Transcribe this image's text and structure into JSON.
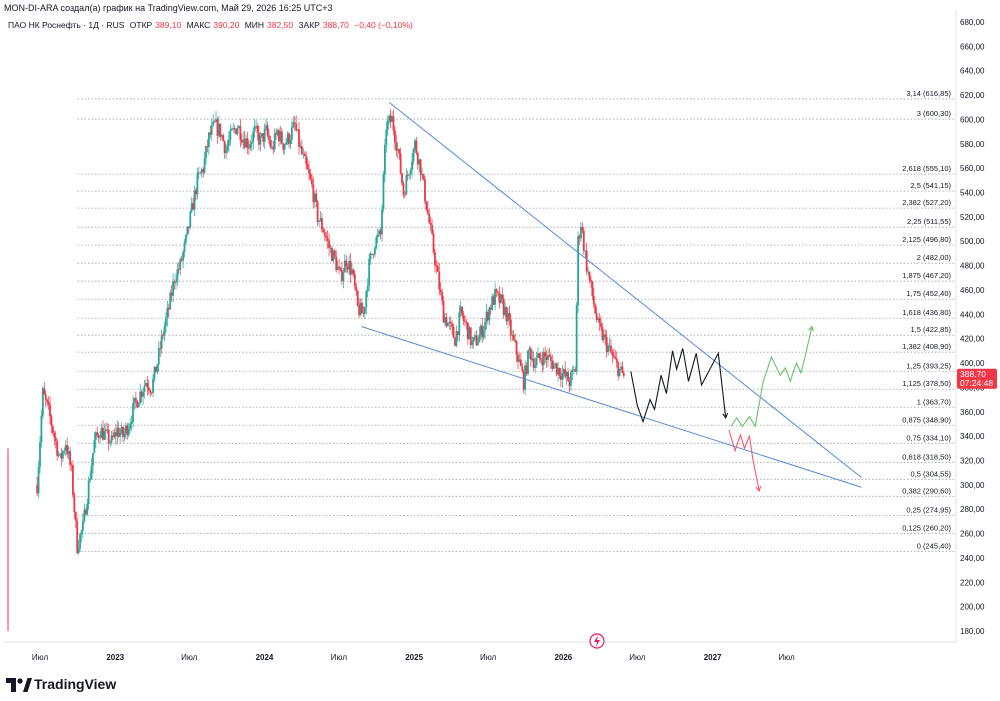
{
  "header": {
    "author_line": "MON-DI-ARA создал(а) график на TradingView.com, Май 29, 2026 16:25 UTC+3"
  },
  "legend": {
    "symbol": "ПАО НК Роснефть · 1Д · RUS",
    "open_label": "ОТКР",
    "open_value": "389,10",
    "high_label": "МАКС",
    "high_value": "390,20",
    "low_label": "МИН",
    "low_value": "382,50",
    "close_label": "ЗАКР",
    "close_value": "388,70",
    "change": "−0,40 (−0,10%)"
  },
  "logo": {
    "text": "TradingView"
  },
  "colors": {
    "up": "#26a69a",
    "down": "#f23645",
    "trendline": "#5b8bd8",
    "fib": "#9aa0a6",
    "bull_path": "#67c16b",
    "bear_path": "#f05a73",
    "base_path": "#131722",
    "price_tag": "#f23645"
  },
  "chart_data": {
    "type": "candlestick",
    "price_axis": {
      "min": 180,
      "max": 680,
      "ticks": [
        "180,00",
        "200,00",
        "220,00",
        "240,00",
        "260,00",
        "280,00",
        "300,00",
        "320,00",
        "340,00",
        "360,00",
        "380,00",
        "400,00",
        "420,00",
        "440,00",
        "460,00",
        "480,00",
        "500,00",
        "520,00",
        "540,00",
        "560,00",
        "580,00",
        "600,00",
        "620,00",
        "640,00",
        "660,00",
        "680,00"
      ]
    },
    "time_axis": {
      "start": "2022-07-01",
      "end": "2027-08-15",
      "labels": [
        {
          "date": "2022-07-01",
          "text": "Июл"
        },
        {
          "date": "2023-01-01",
          "text": "2023"
        },
        {
          "date": "2023-07-01",
          "text": "Июл"
        },
        {
          "date": "2024-01-01",
          "text": "2024"
        },
        {
          "date": "2024-07-01",
          "text": "Июл"
        },
        {
          "date": "2025-01-01",
          "text": "2025"
        },
        {
          "date": "2025-07-01",
          "text": "Июл"
        },
        {
          "date": "2026-01-01",
          "text": "2026"
        },
        {
          "date": "2026-07-01",
          "text": "Июл"
        },
        {
          "date": "2027-01-01",
          "text": "2027"
        },
        {
          "date": "2027-07-01",
          "text": "Июл"
        }
      ]
    },
    "last_price": {
      "value": 388.7,
      "label": "388,70",
      "countdown": "07:24:48"
    },
    "price_path": [
      [
        "2022-06-24",
        300
      ],
      [
        "2022-07-08",
        375
      ],
      [
        "2022-07-22",
        360
      ],
      [
        "2022-08-05",
        340
      ],
      [
        "2022-08-19",
        320
      ],
      [
        "2022-09-02",
        335
      ],
      [
        "2022-09-16",
        310
      ],
      [
        "2022-09-30",
        250
      ],
      [
        "2022-10-14",
        265
      ],
      [
        "2022-10-28",
        300
      ],
      [
        "2022-11-11",
        335
      ],
      [
        "2022-11-25",
        345
      ],
      [
        "2022-12-09",
        340
      ],
      [
        "2022-12-23",
        335
      ],
      [
        "2023-01-06",
        345
      ],
      [
        "2023-01-20",
        340
      ],
      [
        "2023-02-03",
        350
      ],
      [
        "2023-02-17",
        365
      ],
      [
        "2023-03-03",
        375
      ],
      [
        "2023-03-17",
        385
      ],
      [
        "2023-03-31",
        380
      ],
      [
        "2023-04-14",
        400
      ],
      [
        "2023-04-28",
        425
      ],
      [
        "2023-05-12",
        445
      ],
      [
        "2023-05-26",
        470
      ],
      [
        "2023-06-09",
        480
      ],
      [
        "2023-06-23",
        500
      ],
      [
        "2023-07-07",
        525
      ],
      [
        "2023-07-21",
        550
      ],
      [
        "2023-08-04",
        560
      ],
      [
        "2023-08-18",
        585
      ],
      [
        "2023-09-01",
        595
      ],
      [
        "2023-09-15",
        590
      ],
      [
        "2023-09-29",
        575
      ],
      [
        "2023-10-13",
        588
      ],
      [
        "2023-10-27",
        595
      ],
      [
        "2023-11-10",
        585
      ],
      [
        "2023-11-24",
        580
      ],
      [
        "2023-12-08",
        590
      ],
      [
        "2023-12-22",
        582
      ],
      [
        "2024-01-05",
        590
      ],
      [
        "2024-01-19",
        575
      ],
      [
        "2024-02-02",
        590
      ],
      [
        "2024-02-16",
        580
      ],
      [
        "2024-03-01",
        585
      ],
      [
        "2024-03-15",
        595
      ],
      [
        "2024-03-29",
        575
      ],
      [
        "2024-04-12",
        560
      ],
      [
        "2024-04-26",
        545
      ],
      [
        "2024-05-10",
        520
      ],
      [
        "2024-05-24",
        510
      ],
      [
        "2024-06-07",
        495
      ],
      [
        "2024-06-21",
        485
      ],
      [
        "2024-07-05",
        470
      ],
      [
        "2024-07-19",
        485
      ],
      [
        "2024-08-02",
        475
      ],
      [
        "2024-08-16",
        445
      ],
      [
        "2024-08-30",
        440
      ],
      [
        "2024-09-13",
        480
      ],
      [
        "2024-09-27",
        500
      ],
      [
        "2024-10-11",
        505
      ],
      [
        "2024-10-25",
        595
      ],
      [
        "2024-11-08",
        600
      ],
      [
        "2024-11-22",
        575
      ],
      [
        "2024-12-06",
        540
      ],
      [
        "2024-12-20",
        560
      ],
      [
        "2025-01-03",
        580
      ],
      [
        "2025-01-17",
        560
      ],
      [
        "2025-01-31",
        530
      ],
      [
        "2025-02-14",
        500
      ],
      [
        "2025-02-28",
        470
      ],
      [
        "2025-03-14",
        440
      ],
      [
        "2025-03-28",
        430
      ],
      [
        "2025-04-11",
        420
      ],
      [
        "2025-04-25",
        440
      ],
      [
        "2025-05-09",
        430
      ],
      [
        "2025-05-23",
        415
      ],
      [
        "2025-06-06",
        420
      ],
      [
        "2025-06-20",
        430
      ],
      [
        "2025-07-04",
        445
      ],
      [
        "2025-07-18",
        455
      ],
      [
        "2025-08-01",
        450
      ],
      [
        "2025-08-15",
        440
      ],
      [
        "2025-08-29",
        420
      ],
      [
        "2025-09-12",
        405
      ],
      [
        "2025-09-26",
        385
      ],
      [
        "2025-10-10",
        410
      ],
      [
        "2025-10-24",
        400
      ],
      [
        "2025-11-07",
        405
      ],
      [
        "2025-11-21",
        405
      ],
      [
        "2025-12-05",
        400
      ],
      [
        "2025-12-19",
        395
      ],
      [
        "2026-01-02",
        390
      ],
      [
        "2026-01-16",
        385
      ],
      [
        "2026-01-30",
        395
      ],
      [
        "2026-02-06",
        500
      ],
      [
        "2026-02-13",
        515
      ],
      [
        "2026-02-27",
        480
      ],
      [
        "2026-03-13",
        455
      ],
      [
        "2026-03-27",
        430
      ],
      [
        "2026-04-10",
        420
      ],
      [
        "2026-04-24",
        410
      ],
      [
        "2026-05-08",
        400
      ],
      [
        "2026-05-22",
        392
      ],
      [
        "2026-05-29",
        388.7
      ]
    ],
    "fib_levels": [
      {
        "ratio": "0",
        "price": 245.4,
        "label": "0 (245,40)"
      },
      {
        "ratio": "0,125",
        "price": 260.2,
        "label": "0,125 (260,20)"
      },
      {
        "ratio": "0,25",
        "price": 274.95,
        "label": "0,25 (274,95)"
      },
      {
        "ratio": "0,382",
        "price": 290.6,
        "label": "0,382 (290,60)"
      },
      {
        "ratio": "0,5",
        "price": 304.55,
        "label": "0,5 (304,55)"
      },
      {
        "ratio": "0,618",
        "price": 318.5,
        "label": "0,618 (318,50)"
      },
      {
        "ratio": "0,75",
        "price": 334.1,
        "label": "0,75 (334,10)"
      },
      {
        "ratio": "0,875",
        "price": 348.9,
        "label": "0,875 (348,90)"
      },
      {
        "ratio": "1",
        "price": 363.7,
        "label": "1 (363,70)"
      },
      {
        "ratio": "1,125",
        "price": 378.5,
        "label": "1,125 (378,50)"
      },
      {
        "ratio": "1,25",
        "price": 393.25,
        "label": "1,25 (393,25)"
      },
      {
        "ratio": "1,382",
        "price": 408.9,
        "label": "1,382 (408,90)"
      },
      {
        "ratio": "1,5",
        "price": 422.85,
        "label": "1,5 (422,85)"
      },
      {
        "ratio": "1,618",
        "price": 436.8,
        "label": "1,618 (436,80)"
      },
      {
        "ratio": "1,75",
        "price": 452.4,
        "label": "1,75 (452,40)"
      },
      {
        "ratio": "1,875",
        "price": 467.2,
        "label": "1,875 (467,20)"
      },
      {
        "ratio": "2",
        "price": 482.0,
        "label": "2 (482,00)"
      },
      {
        "ratio": "2,125",
        "price": 496.8,
        "label": "2,125 (496,80)"
      },
      {
        "ratio": "2,25",
        "price": 511.55,
        "label": "2,25 (511,55)"
      },
      {
        "ratio": "2,382",
        "price": 527.2,
        "label": "2,382 (527,20)"
      },
      {
        "ratio": "2,5",
        "price": 541.15,
        "label": "2,5 (541,15)"
      },
      {
        "ratio": "2,618",
        "price": 555.1,
        "label": "2,618 (555,10)"
      },
      {
        "ratio": "3",
        "price": 600.3,
        "label": "3 (600,30)"
      },
      {
        "ratio": "3,14",
        "price": 616.85,
        "label": "3,14 (616,85)"
      }
    ],
    "fib_start_date": "2022-10-01",
    "trendlines": [
      {
        "name": "upper",
        "points": [
          [
            "2024-11-01",
            614
          ],
          [
            "2027-12-31",
            306
          ]
        ]
      },
      {
        "name": "lower",
        "points": [
          [
            "2024-08-25",
            430
          ],
          [
            "2027-12-31",
            298
          ]
        ]
      }
    ],
    "projection_paths": [
      {
        "name": "base",
        "color": "#131722",
        "points": [
          [
            "2026-06-15",
            393
          ],
          [
            "2026-07-01",
            365
          ],
          [
            "2026-07-15",
            352
          ],
          [
            "2026-08-01",
            370
          ],
          [
            "2026-08-12",
            362
          ],
          [
            "2026-08-28",
            390
          ],
          [
            "2026-09-10",
            375
          ],
          [
            "2026-09-25",
            410
          ],
          [
            "2026-10-05",
            395
          ],
          [
            "2026-10-20",
            412
          ],
          [
            "2026-11-03",
            385
          ],
          [
            "2026-11-22",
            408
          ],
          [
            "2026-12-05",
            382
          ],
          [
            "2027-01-15",
            408
          ],
          [
            "2027-02-02",
            355
          ]
        ]
      },
      {
        "name": "bear",
        "color": "#f05a73",
        "points": [
          [
            "2027-02-10",
            345
          ],
          [
            "2027-02-25",
            328
          ],
          [
            "2027-03-10",
            341
          ],
          [
            "2027-03-20",
            330
          ],
          [
            "2027-04-01",
            340
          ],
          [
            "2027-04-10",
            320
          ],
          [
            "2027-04-25",
            295
          ]
        ]
      },
      {
        "name": "bull",
        "color": "#67c16b",
        "points": [
          [
            "2027-02-15",
            348
          ],
          [
            "2027-03-01",
            355
          ],
          [
            "2027-03-15",
            348
          ],
          [
            "2027-04-01",
            356
          ],
          [
            "2027-04-15",
            348
          ],
          [
            "2027-05-05",
            385
          ],
          [
            "2027-05-25",
            405
          ],
          [
            "2027-06-15",
            390
          ],
          [
            "2027-06-28",
            396
          ],
          [
            "2027-07-10",
            385
          ],
          [
            "2027-07-25",
            400
          ],
          [
            "2027-08-05",
            392
          ],
          [
            "2027-08-15",
            405
          ],
          [
            "2027-09-01",
            430
          ]
        ]
      }
    ]
  }
}
